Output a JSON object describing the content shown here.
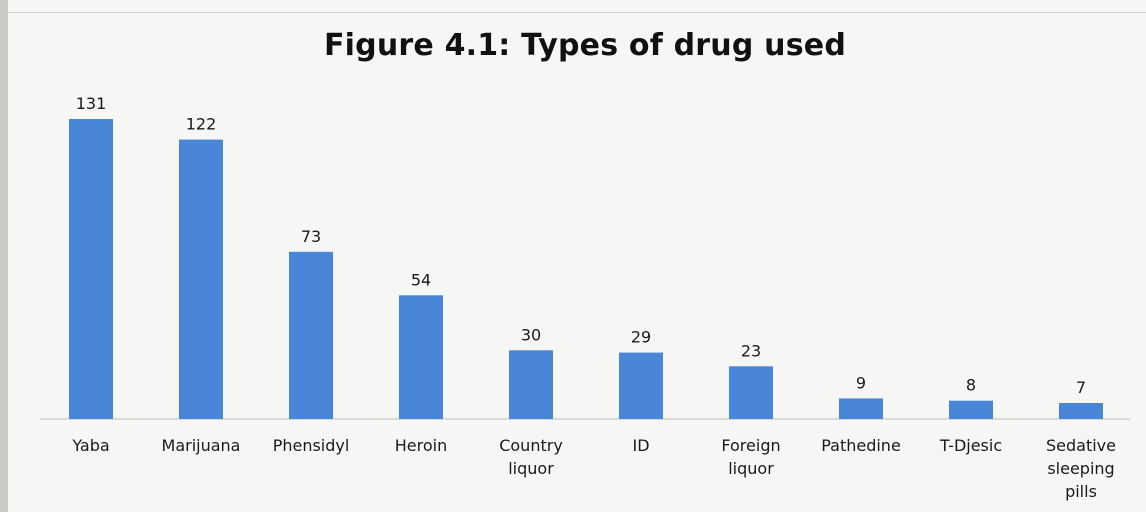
{
  "chart_data": {
    "type": "bar",
    "title": "Figure 4.1: Types of drug used",
    "xlabel": "",
    "ylabel": "",
    "categories": [
      "Yaba",
      "Marijuana",
      "Phensidyl",
      "Heroin",
      "Country liquor",
      "ID",
      "Foreign liquor",
      "Pathedine",
      "T-Djesic",
      "Sedative sleeping pills"
    ],
    "category_lines": [
      [
        "Yaba"
      ],
      [
        "Marijuana"
      ],
      [
        "Phensidyl"
      ],
      [
        "Heroin"
      ],
      [
        "Country",
        "liquor"
      ],
      [
        "ID"
      ],
      [
        "Foreign",
        "liquor"
      ],
      [
        "Pathedine"
      ],
      [
        "T-Djesic"
      ],
      [
        "Sedative",
        "sleeping",
        "pills"
      ]
    ],
    "values": [
      131,
      122,
      73,
      54,
      30,
      29,
      23,
      9,
      8,
      7
    ],
    "data_labels": [
      "131",
      "122",
      "73",
      "54",
      "30",
      "29",
      "23",
      "9",
      "8",
      "7"
    ],
    "ylim": [
      0,
      131
    ],
    "grid": false,
    "legend": "none",
    "colors": {
      "bar": "#4a86d8"
    }
  }
}
